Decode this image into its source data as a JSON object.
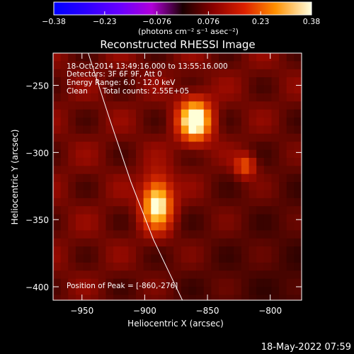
{
  "chart_data": {
    "type": "heatmap",
    "title": "Reconstructed RHESSI Image",
    "xlabel": "Heliocentric X (arcsec)",
    "ylabel": "Heliocentric Y (arcsec)",
    "xlim": [
      -973,
      -775
    ],
    "ylim": [
      -410,
      -226
    ],
    "x_ticks": [
      {
        "value": -950,
        "label": "−950"
      },
      {
        "value": -900,
        "label": "−900"
      },
      {
        "value": -850,
        "label": "−850"
      },
      {
        "value": -800,
        "label": "−800"
      }
    ],
    "y_ticks": [
      {
        "value": -250,
        "label": "−250"
      },
      {
        "value": -300,
        "label": "−300"
      },
      {
        "value": -350,
        "label": "−350"
      },
      {
        "value": -400,
        "label": "−400"
      }
    ],
    "colorbar": {
      "min": -0.38,
      "max": 0.38,
      "ticks": [
        {
          "value": -0.38,
          "label": "−0.38"
        },
        {
          "value": -0.23,
          "label": "−0.23"
        },
        {
          "value": -0.076,
          "label": "−0.076"
        },
        {
          "value": 0.076,
          "label": "0.076"
        },
        {
          "value": 0.23,
          "label": "0.23"
        },
        {
          "value": 0.38,
          "label": "0.38"
        }
      ],
      "unit_label": "(photons cm⁻² s⁻¹ asec⁻²)"
    },
    "annotations": {
      "time_range": "18-Oct-2014 13:49:16.000 to 13:55:16.000",
      "detectors": "Detectors: 3F 6F 9F, Att 0",
      "energy_range": "Energy Range: 6.0 - 12.0 keV",
      "clean_label": "Clean",
      "total_counts": "Total counts: 2.55E+05",
      "peak_position": "Position of Peak = [-860,-276]"
    },
    "sources": [
      {
        "x": -860,
        "y": -276,
        "rx": 11,
        "ry": 13,
        "peak": 0.38
      },
      {
        "x": -890,
        "y": -338,
        "rx": 10,
        "ry": 16,
        "peak": 0.34
      },
      {
        "x": -820,
        "y": -310,
        "rx": 7,
        "ry": 7,
        "peak": 0.16
      }
    ],
    "background_level": 0.09,
    "limb": [
      [
        -945,
        -226
      ],
      [
        -928,
        -275
      ],
      [
        -911,
        -322
      ],
      [
        -893,
        -365
      ],
      [
        -870,
        -410
      ]
    ],
    "grid": false
  },
  "footer_timestamp": "18-May-2022 07:59"
}
